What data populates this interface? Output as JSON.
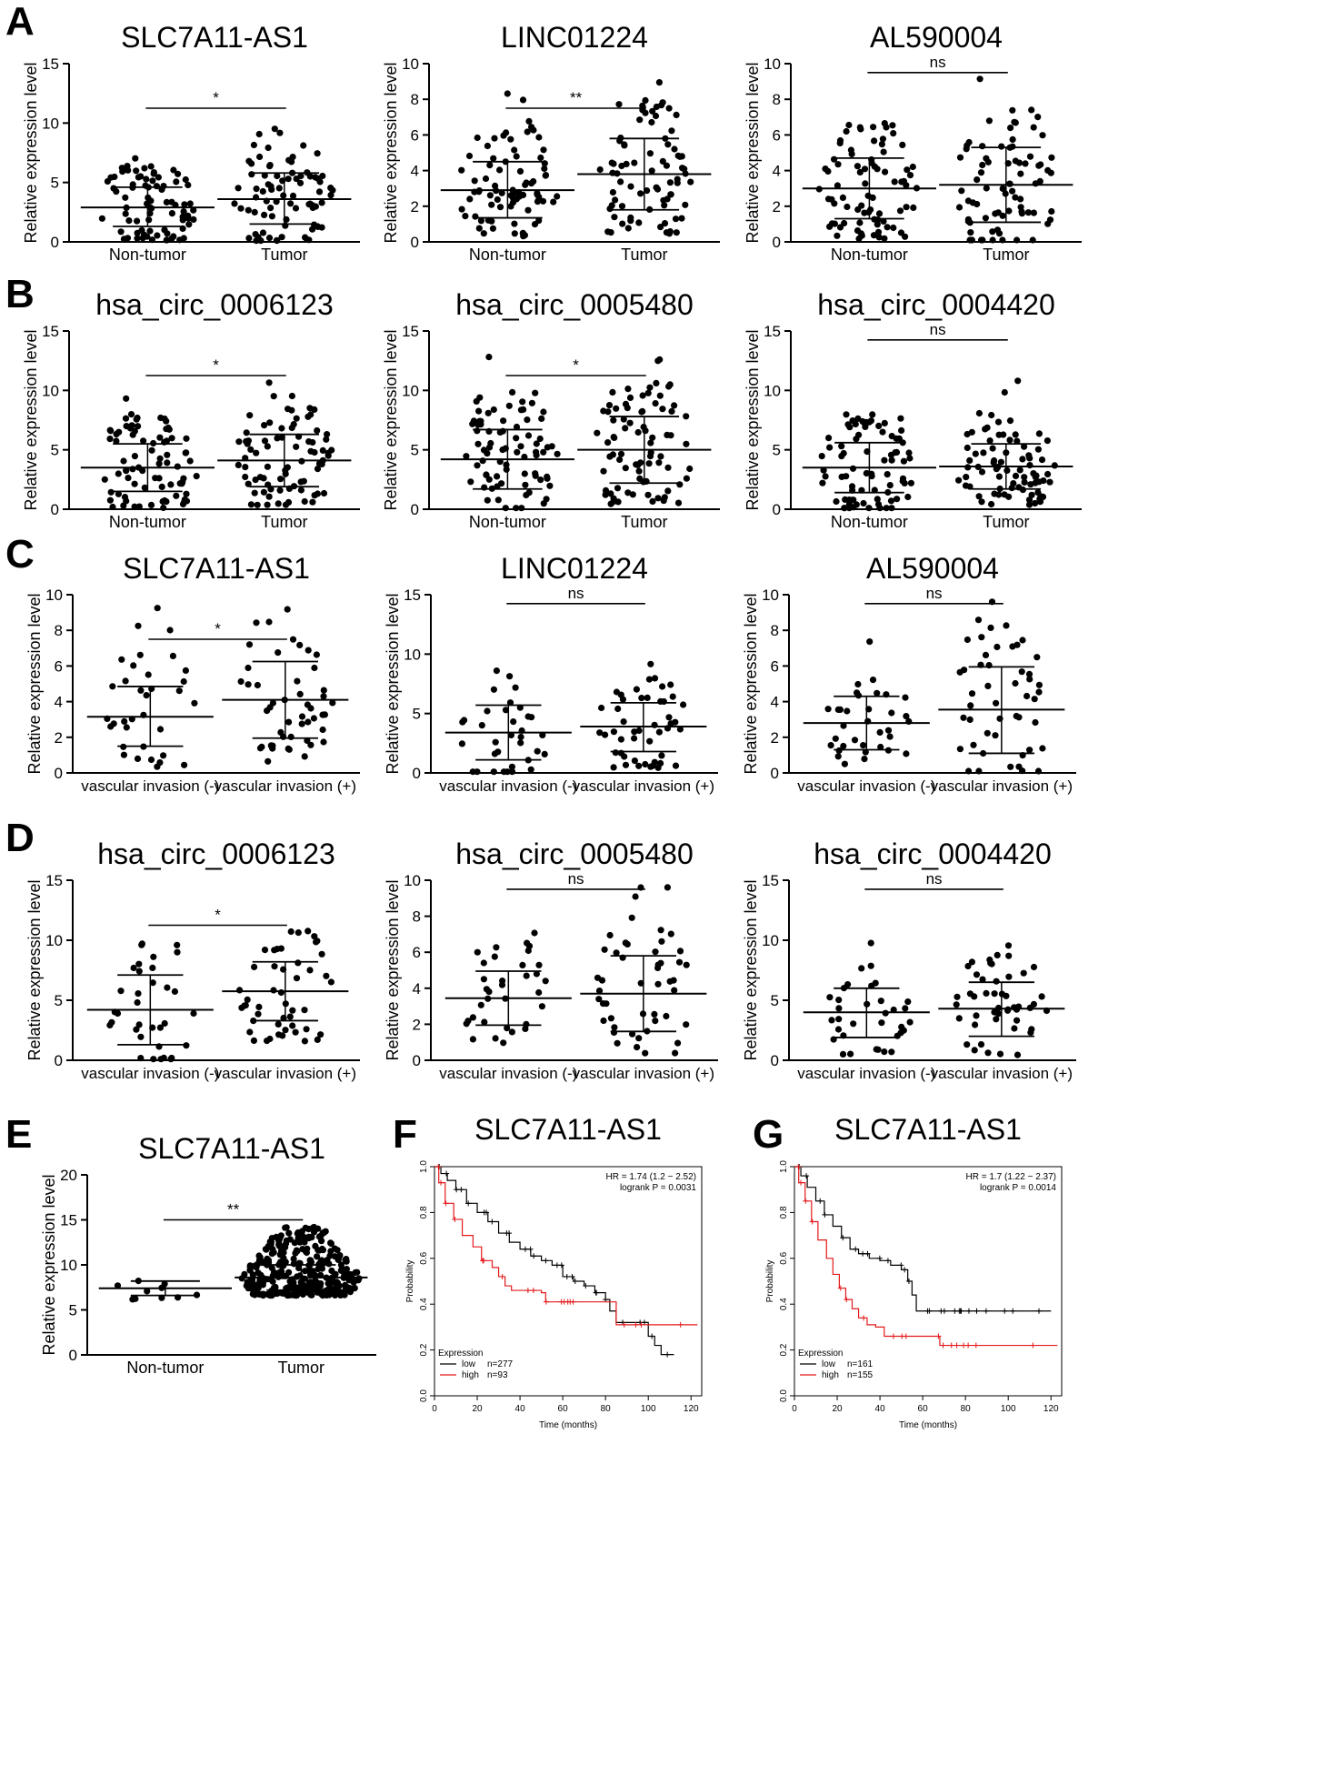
{
  "panel_letters": [
    "A",
    "B",
    "C",
    "D",
    "E",
    "F",
    "G"
  ],
  "chart_data": [
    {
      "id": "A1",
      "type": "scatter",
      "title": "SLC7A11-AS1",
      "ylabel": "Relative  expression  level",
      "ylim": [
        0,
        15
      ],
      "yticks": [
        0,
        5,
        10,
        15
      ],
      "categories": [
        "Non-tumor",
        "Tumor"
      ],
      "significance": "*",
      "groups": [
        {
          "name": "Non-tumor",
          "mean": 2.9,
          "sd_low": 1.3,
          "sd_high": 4.6
        },
        {
          "name": "Tumor",
          "mean": 3.6,
          "sd_low": 1.5,
          "sd_high": 5.8
        }
      ]
    },
    {
      "id": "A2",
      "type": "scatter",
      "title": "LINC01224",
      "ylabel": "Relative  expression  level",
      "ylim": [
        0,
        10
      ],
      "yticks": [
        0,
        2,
        4,
        6,
        8,
        10
      ],
      "categories": [
        "Non-tumor",
        "Tumor"
      ],
      "significance": "**",
      "groups": [
        {
          "name": "Non-tumor",
          "mean": 2.9,
          "sd_low": 1.35,
          "sd_high": 4.5
        },
        {
          "name": "Tumor",
          "mean": 3.8,
          "sd_low": 1.8,
          "sd_high": 5.8
        }
      ]
    },
    {
      "id": "A3",
      "type": "scatter",
      "title": "AL590004",
      "ylabel": "Relative  expression  level",
      "ylim": [
        0,
        10
      ],
      "yticks": [
        0,
        2,
        4,
        6,
        8,
        10
      ],
      "categories": [
        "Non-tumor",
        "Tumor"
      ],
      "significance": "ns",
      "groups": [
        {
          "name": "Non-tumor",
          "mean": 3.0,
          "sd_low": 1.3,
          "sd_high": 4.7
        },
        {
          "name": "Tumor",
          "mean": 3.2,
          "sd_low": 1.1,
          "sd_high": 5.3
        }
      ]
    },
    {
      "id": "B1",
      "type": "scatter",
      "title": "hsa_circ_0006123",
      "ylabel": "Relative  expression  level",
      "ylim": [
        0,
        15
      ],
      "yticks": [
        0,
        5,
        10,
        15
      ],
      "categories": [
        "Non-tumor",
        "Tumor"
      ],
      "significance": "*",
      "groups": [
        {
          "name": "Non-tumor",
          "mean": 3.5,
          "sd_low": 1.5,
          "sd_high": 5.5
        },
        {
          "name": "Tumor",
          "mean": 4.1,
          "sd_low": 1.9,
          "sd_high": 6.3
        }
      ]
    },
    {
      "id": "B2",
      "type": "scatter",
      "title": "hsa_circ_0005480",
      "ylabel": "Relative  expression  level",
      "ylim": [
        0,
        15
      ],
      "yticks": [
        0,
        5,
        10,
        15
      ],
      "categories": [
        "Non-tumor",
        "Tumor"
      ],
      "significance": "*",
      "groups": [
        {
          "name": "Non-tumor",
          "mean": 4.2,
          "sd_low": 1.7,
          "sd_high": 6.7
        },
        {
          "name": "Tumor",
          "mean": 5.0,
          "sd_low": 2.2,
          "sd_high": 7.8
        }
      ]
    },
    {
      "id": "B3",
      "type": "scatter",
      "title": "hsa_circ_0004420",
      "ylabel": "Relative  expression  level",
      "ylim": [
        0,
        15
      ],
      "yticks": [
        0,
        5,
        10,
        15
      ],
      "categories": [
        "Non-tumor",
        "Tumor"
      ],
      "significance": "ns",
      "groups": [
        {
          "name": "Non-tumor",
          "mean": 3.5,
          "sd_low": 1.4,
          "sd_high": 5.6
        },
        {
          "name": "Tumor",
          "mean": 3.6,
          "sd_low": 1.7,
          "sd_high": 5.5
        }
      ]
    },
    {
      "id": "C1",
      "type": "scatter",
      "title": "SLC7A11-AS1",
      "ylabel": "Relative  expression  level",
      "ylim": [
        0,
        10
      ],
      "yticks": [
        0,
        2,
        4,
        6,
        8,
        10
      ],
      "categories": [
        "vascular invasion (-)",
        "vascular invasion (+)"
      ],
      "significance": "*",
      "groups": [
        {
          "name": "vascular invasion (-)",
          "mean": 3.15,
          "sd_low": 1.5,
          "sd_high": 4.85
        },
        {
          "name": "vascular invasion (+)",
          "mean": 4.1,
          "sd_low": 1.95,
          "sd_high": 6.25
        }
      ]
    },
    {
      "id": "C2",
      "type": "scatter",
      "title": "LINC01224",
      "ylabel": "Relative  expression  level",
      "ylim": [
        0,
        15
      ],
      "yticks": [
        0,
        5,
        10,
        15
      ],
      "categories": [
        "vascular invasion (-)",
        "vascular invasion (+)"
      ],
      "significance": "ns",
      "groups": [
        {
          "name": "vascular invasion (-)",
          "mean": 3.4,
          "sd_low": 1.1,
          "sd_high": 5.7
        },
        {
          "name": "vascular invasion (+)",
          "mean": 3.9,
          "sd_low": 1.8,
          "sd_high": 5.9
        }
      ]
    },
    {
      "id": "C3",
      "type": "scatter",
      "title": "AL590004",
      "ylabel": "Relative  expression  level",
      "ylim": [
        0,
        10
      ],
      "yticks": [
        0,
        2,
        4,
        6,
        8,
        10
      ],
      "categories": [
        "vascular invasion (-)",
        "vascular invasion (+)"
      ],
      "significance": "ns",
      "groups": [
        {
          "name": "vascular invasion (-)",
          "mean": 2.8,
          "sd_low": 1.3,
          "sd_high": 4.3
        },
        {
          "name": "vascular invasion (+)",
          "mean": 3.55,
          "sd_low": 1.1,
          "sd_high": 5.95
        }
      ]
    },
    {
      "id": "D1",
      "type": "scatter",
      "title": "hsa_circ_0006123",
      "ylabel": "Relative  expression  level",
      "ylim": [
        0,
        15
      ],
      "yticks": [
        0,
        5,
        10,
        15
      ],
      "categories": [
        "vascular invasion (-)",
        "vascular invasion (+)"
      ],
      "significance": "*",
      "groups": [
        {
          "name": "vascular invasion (-)",
          "mean": 4.2,
          "sd_low": 1.3,
          "sd_high": 7.1
        },
        {
          "name": "vascular invasion (+)",
          "mean": 5.75,
          "sd_low": 3.3,
          "sd_high": 8.2
        }
      ]
    },
    {
      "id": "D2",
      "type": "scatter",
      "title": "hsa_circ_0005480",
      "ylabel": "Relative  expression  level",
      "ylim": [
        0,
        10
      ],
      "yticks": [
        0,
        2,
        4,
        6,
        8,
        10
      ],
      "categories": [
        "vascular invasion (-)",
        "vascular invasion (+)"
      ],
      "significance": "ns",
      "groups": [
        {
          "name": "vascular invasion (-)",
          "mean": 3.45,
          "sd_low": 1.95,
          "sd_high": 4.95
        },
        {
          "name": "vascular invasion (+)",
          "mean": 3.7,
          "sd_low": 1.6,
          "sd_high": 5.8
        }
      ]
    },
    {
      "id": "D3",
      "type": "scatter",
      "title": "hsa_circ_0004420",
      "ylabel": "Relative  expression  level",
      "ylim": [
        0,
        15
      ],
      "yticks": [
        0,
        5,
        10,
        15
      ],
      "categories": [
        "vascular invasion (-)",
        "vascular invasion (+)"
      ],
      "significance": "ns",
      "groups": [
        {
          "name": "vascular invasion (-)",
          "mean": 4.0,
          "sd_low": 1.9,
          "sd_high": 6.0
        },
        {
          "name": "vascular invasion (+)",
          "mean": 4.3,
          "sd_low": 2.0,
          "sd_high": 6.5
        }
      ]
    },
    {
      "id": "E",
      "type": "scatter",
      "title": "SLC7A11-AS1",
      "ylabel": "Relative  expression  level",
      "ylim": [
        0,
        20
      ],
      "yticks": [
        0,
        5,
        10,
        15,
        20
      ],
      "categories": [
        "Non-tumor",
        "Tumor"
      ],
      "significance": "**",
      "groups": [
        {
          "name": "Non-tumor",
          "mean": 7.4,
          "sd_low": 6.6,
          "sd_high": 8.2
        },
        {
          "name": "Tumor",
          "mean": 8.6,
          "sd_low": 7.2,
          "sd_high": 10.0
        }
      ]
    },
    {
      "id": "F",
      "type": "line",
      "title": "SLC7A11-AS1",
      "xlabel": "Time (months)",
      "ylabel": "Probability",
      "xlim": [
        0,
        125
      ],
      "ylim": [
        0,
        1
      ],
      "xticks": [
        0,
        20,
        40,
        60,
        80,
        100,
        120
      ],
      "yticks": [
        "0.0",
        "0.2",
        "0.4",
        "0.6",
        "0.8",
        "1.0"
      ],
      "stats": [
        "HR = 1.74 (1.2 − 2.52)",
        "logrank P = 0.0031"
      ],
      "legend_title": "Expression",
      "series": [
        {
          "name": "low",
          "n": "n=277",
          "color": "#000000",
          "points": [
            [
              0,
              1.0
            ],
            [
              3,
              0.97
            ],
            [
              6,
              0.94
            ],
            [
              10,
              0.9
            ],
            [
              15,
              0.84
            ],
            [
              20,
              0.8
            ],
            [
              25,
              0.76
            ],
            [
              30,
              0.71
            ],
            [
              35,
              0.67
            ],
            [
              40,
              0.64
            ],
            [
              45,
              0.61
            ],
            [
              50,
              0.59
            ],
            [
              55,
              0.57
            ],
            [
              60,
              0.52
            ],
            [
              65,
              0.5
            ],
            [
              70,
              0.48
            ],
            [
              75,
              0.45
            ],
            [
              80,
              0.42
            ],
            [
              82,
              0.37
            ],
            [
              85,
              0.32
            ],
            [
              95,
              0.32
            ],
            [
              100,
              0.26
            ],
            [
              103,
              0.22
            ],
            [
              106,
              0.18
            ],
            [
              112,
              0.18
            ]
          ]
        },
        {
          "name": "high",
          "n": "n=93",
          "color": "#e31a1c",
          "points": [
            [
              0,
              1.0
            ],
            [
              2,
              0.93
            ],
            [
              5,
              0.84
            ],
            [
              9,
              0.77
            ],
            [
              13,
              0.7
            ],
            [
              18,
              0.65
            ],
            [
              22,
              0.59
            ],
            [
              27,
              0.56
            ],
            [
              30,
              0.52
            ],
            [
              33,
              0.48
            ],
            [
              36,
              0.46
            ],
            [
              42,
              0.46
            ],
            [
              50,
              0.45
            ],
            [
              52,
              0.41
            ],
            [
              60,
              0.41
            ],
            [
              84,
              0.41
            ],
            [
              85,
              0.31
            ],
            [
              123,
              0.31
            ]
          ]
        }
      ]
    },
    {
      "id": "G",
      "type": "line",
      "title": "SLC7A11-AS1",
      "xlabel": "Time (months)",
      "ylabel": "Probability",
      "xlim": [
        0,
        125
      ],
      "ylim": [
        0,
        1
      ],
      "xticks": [
        0,
        20,
        40,
        60,
        80,
        100,
        120
      ],
      "yticks": [
        "0.0",
        "0.2",
        "0.4",
        "0.6",
        "0.8",
        "1.0"
      ],
      "stats": [
        "HR = 1.7 (1.22 − 2.37)",
        "logrank P = 0.0014"
      ],
      "legend_title": "Expression",
      "series": [
        {
          "name": "low",
          "n": "n=161",
          "color": "#000000",
          "points": [
            [
              0,
              1.0
            ],
            [
              3,
              0.96
            ],
            [
              6,
              0.91
            ],
            [
              10,
              0.85
            ],
            [
              14,
              0.79
            ],
            [
              18,
              0.74
            ],
            [
              22,
              0.69
            ],
            [
              26,
              0.64
            ],
            [
              30,
              0.62
            ],
            [
              35,
              0.6
            ],
            [
              40,
              0.59
            ],
            [
              45,
              0.57
            ],
            [
              50,
              0.55
            ],
            [
              53,
              0.5
            ],
            [
              55,
              0.44
            ],
            [
              57,
              0.37
            ],
            [
              70,
              0.37
            ],
            [
              120,
              0.37
            ]
          ]
        },
        {
          "name": "high",
          "n": "n=155",
          "color": "#e31a1c",
          "points": [
            [
              0,
              1.0
            ],
            [
              2,
              0.93
            ],
            [
              5,
              0.85
            ],
            [
              8,
              0.76
            ],
            [
              11,
              0.68
            ],
            [
              15,
              0.6
            ],
            [
              18,
              0.53
            ],
            [
              21,
              0.47
            ],
            [
              24,
              0.42
            ],
            [
              27,
              0.38
            ],
            [
              30,
              0.34
            ],
            [
              34,
              0.31
            ],
            [
              38,
              0.3
            ],
            [
              42,
              0.26
            ],
            [
              50,
              0.26
            ],
            [
              60,
              0.26
            ],
            [
              68,
              0.22
            ],
            [
              123,
              0.22
            ]
          ]
        }
      ]
    }
  ]
}
